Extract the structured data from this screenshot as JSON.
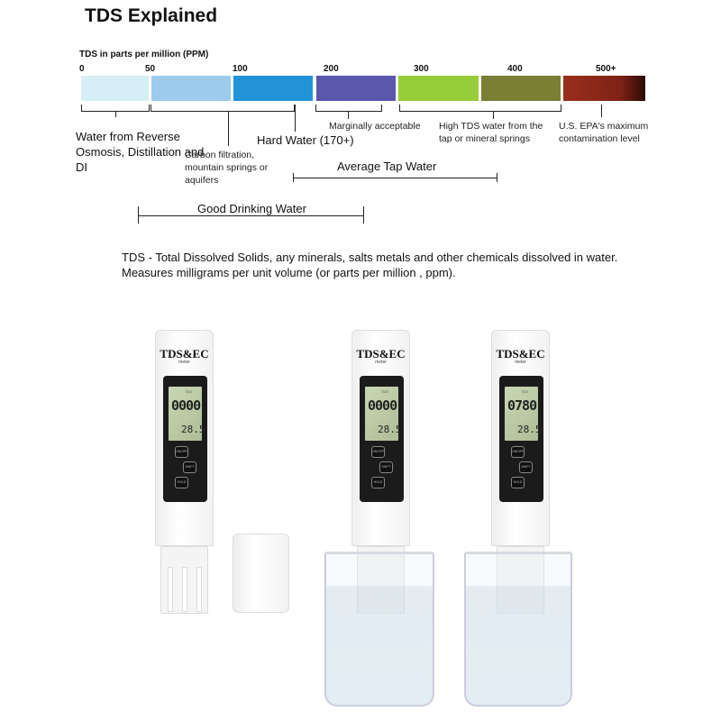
{
  "title": "TDS Explained",
  "scale": {
    "label": "TDS in parts per million (PPM)",
    "ticks": [
      "0",
      "50",
      "100",
      "200",
      "300",
      "400",
      "500+"
    ],
    "colors": [
      "#d6eef5",
      "#9ccbeb",
      "#2193d6",
      "#5b57ad",
      "#97cc3a",
      "#7b7e35",
      "#7e2216"
    ]
  },
  "annotations": {
    "ro": "Water from Reverse Osmosis, Distillation and DI",
    "carbon": "Carbon filtration, mountain springs or aquifers",
    "hard": "Hard Water (170+)",
    "marginal": "Marginally acceptable",
    "high": "High TDS water from the tap or mineral springs",
    "epa": "U.S. EPA's maximum contamination level",
    "tap": "Average Tap Water",
    "good": "Good Drinking Water"
  },
  "description": {
    "line1": "TDS - Total Dissolved Solids, any minerals, salts metals and other chemicals dissolved in water.",
    "line2": "Measures milligrams per unit volume (or parts per million , ppm)."
  },
  "meters": [
    {
      "brand": "TDS&EC",
      "sub": "meter",
      "mode": "TDS",
      "reading": "0000",
      "temp": "28.5",
      "buttons": [
        "ON/OFF",
        "SHIFT",
        "HOLD"
      ]
    },
    {
      "brand": "TDS&EC",
      "sub": "meter",
      "mode": "TDS",
      "reading": "0000",
      "temp": "28.5",
      "buttons": [
        "ON/OFF",
        "SHIFT",
        "HOLD"
      ]
    },
    {
      "brand": "TDS&EC",
      "sub": "meter",
      "mode": "TDS",
      "reading": "0780",
      "temp": "28.5",
      "buttons": [
        "ON/OFF",
        "SHIFT",
        "HOLD"
      ]
    }
  ]
}
